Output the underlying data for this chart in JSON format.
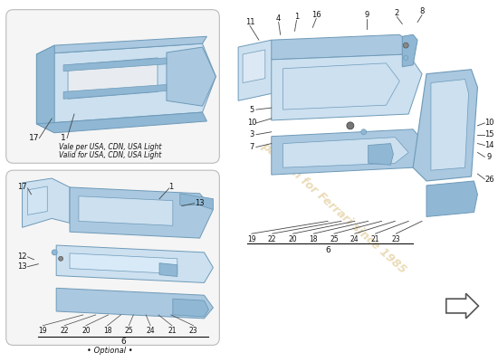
{
  "page_bg": "#ffffff",
  "part_color": "#aac8e0",
  "part_color_dark": "#6e9ab8",
  "part_color_light": "#cce0f0",
  "part_color_mid": "#90b8d4",
  "line_color": "#444444",
  "text_color": "#111111",
  "watermark_color": "#c8a040",
  "box1_note1": "Vale per USA, CDN, USA Light",
  "box1_note2": "Valid for USA, CDN, USA Light",
  "box2_group_label": "6",
  "box2_footer": "• Optional •",
  "right_group_footer": "6",
  "watermark_text": "passion for Ferrari since 1985"
}
